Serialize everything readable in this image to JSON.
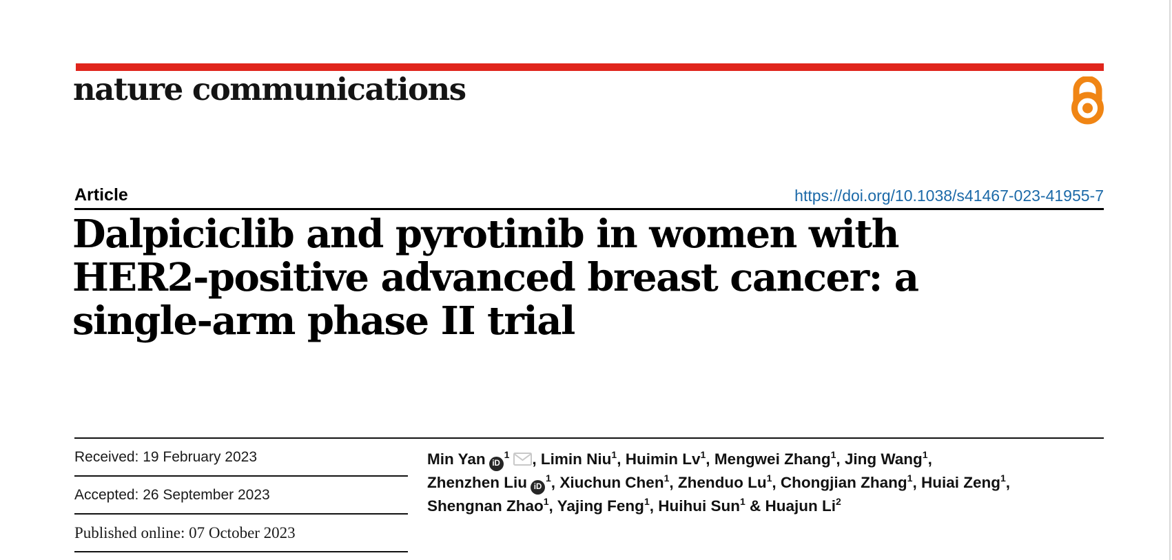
{
  "masthead": {
    "journal": "nature communications",
    "bar_color": "#e0251c",
    "open_access_color": "#f08514"
  },
  "article_row": {
    "type_label": "Article",
    "doi": "https://doi.org/10.1038/s41467-023-41955-7",
    "doi_color": "#1b69a8"
  },
  "title": {
    "lines": [
      "Dalpiciclib and pyrotinib in women with",
      "HER2-positive advanced breast cancer: a",
      "single-arm phase II trial"
    ]
  },
  "dates": {
    "received": "Received: 19 February 2023",
    "accepted": "Accepted: 26 September 2023",
    "published": "Published online: 07 October 2023"
  },
  "icons": {
    "orcid_glyph": "iD",
    "orcid_bg": "#262626",
    "envelope_color": "#c8c8c8"
  },
  "authors": {
    "list": [
      {
        "name": "Min Yan",
        "sup": "1",
        "orcid": true,
        "email": true,
        "after": ", "
      },
      {
        "name": "Limin Niu",
        "sup": "1",
        "after": ", "
      },
      {
        "name": "Huimin Lv",
        "sup": "1",
        "after": ", "
      },
      {
        "name": "Mengwei Zhang",
        "sup": "1",
        "after": ", "
      },
      {
        "name": "Jing Wang",
        "sup": "1",
        "after": ",",
        "br": true
      },
      {
        "name": "Zhenzhen Liu",
        "sup": "1",
        "orcid": true,
        "after": ", "
      },
      {
        "name": "Xiuchun Chen",
        "sup": "1",
        "after": ", "
      },
      {
        "name": "Zhenduo Lu",
        "sup": "1",
        "after": ", "
      },
      {
        "name": "Chongjian Zhang",
        "sup": "1",
        "after": ", "
      },
      {
        "name": "Huiai Zeng",
        "sup": "1",
        "after": ",",
        "br": true
      },
      {
        "name": "Shengnan Zhao",
        "sup": "1",
        "after": ", "
      },
      {
        "name": "Yajing Feng",
        "sup": "1",
        "after": ", "
      },
      {
        "name": "Huihui Sun",
        "sup": "1",
        "after": " & "
      },
      {
        "name": "Huajun Li",
        "sup": "2",
        "after": ""
      }
    ]
  }
}
